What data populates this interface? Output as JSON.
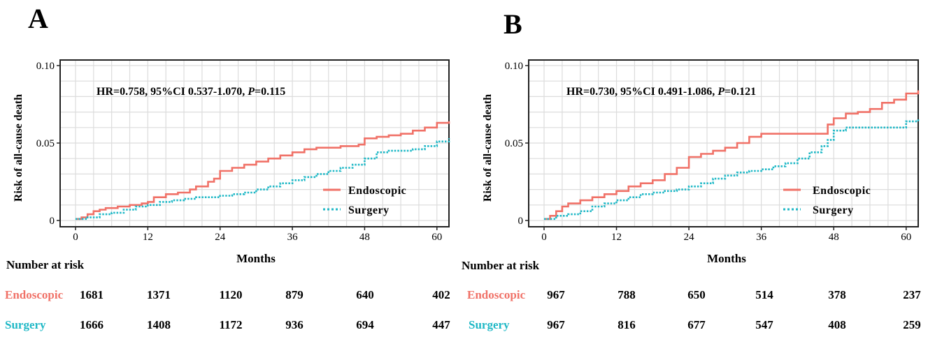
{
  "colors": {
    "endoscopic": "#f07167",
    "surgery": "#1fb8c6",
    "grid": "#dcdcdc",
    "axis": "#222222"
  },
  "chart_data": [
    {
      "type": "line",
      "panel": "A",
      "ylabel": "Risk of all-cause death",
      "xlabel": "Months",
      "xlim": [
        0,
        62
      ],
      "ylim": [
        0,
        0.1
      ],
      "xticks": [
        0,
        12,
        24,
        36,
        48,
        60
      ],
      "yticks": [
        {
          "v": 0,
          "t": "0"
        },
        {
          "v": 0.05,
          "t": "0.05"
        },
        {
          "v": 0.1,
          "t": "0.10"
        }
      ],
      "grid": true,
      "legend_position": "bottom-right",
      "annotation": {
        "pre": "HR=0.758, 95%CI 0.537-1.070, ",
        "p": "P",
        "post": "=0.115"
      },
      "series": [
        {
          "name": "Endoscopic",
          "style": "solid",
          "x": [
            0,
            1,
            2,
            3,
            4,
            5,
            6,
            7,
            9,
            11,
            12,
            13,
            15,
            17,
            19,
            20,
            22,
            23,
            24,
            26,
            28,
            30,
            32,
            34,
            36,
            38,
            40,
            42,
            44,
            46,
            47,
            48,
            50,
            52,
            54,
            56,
            58,
            60,
            62
          ],
          "y": [
            0.001,
            0.002,
            0.004,
            0.006,
            0.007,
            0.008,
            0.008,
            0.009,
            0.01,
            0.011,
            0.012,
            0.015,
            0.017,
            0.018,
            0.02,
            0.022,
            0.025,
            0.027,
            0.032,
            0.034,
            0.036,
            0.038,
            0.04,
            0.042,
            0.044,
            0.046,
            0.047,
            0.047,
            0.048,
            0.048,
            0.049,
            0.053,
            0.054,
            0.055,
            0.056,
            0.058,
            0.06,
            0.063,
            0.064
          ]
        },
        {
          "name": "Surgery",
          "style": "dotted",
          "x": [
            0,
            2,
            4,
            6,
            8,
            10,
            12,
            14,
            16,
            18,
            20,
            22,
            24,
            26,
            28,
            30,
            32,
            34,
            36,
            38,
            40,
            42,
            44,
            46,
            48,
            50,
            52,
            54,
            56,
            58,
            60,
            62
          ],
          "y": [
            0.001,
            0.002,
            0.004,
            0.005,
            0.007,
            0.009,
            0.01,
            0.012,
            0.013,
            0.014,
            0.015,
            0.015,
            0.016,
            0.017,
            0.018,
            0.02,
            0.022,
            0.024,
            0.026,
            0.028,
            0.03,
            0.032,
            0.034,
            0.036,
            0.04,
            0.044,
            0.045,
            0.045,
            0.046,
            0.048,
            0.051,
            0.053
          ]
        }
      ],
      "risk_table": {
        "title": "Number at risk",
        "rows": [
          {
            "label": "Endoscopic",
            "counts": [
              "1681",
              "1371",
              "1120",
              "879",
              "640",
              "402"
            ]
          },
          {
            "label": "Surgery",
            "counts": [
              "1666",
              "1408",
              "1172",
              "936",
              "694",
              "447"
            ]
          }
        ]
      }
    },
    {
      "type": "line",
      "panel": "B",
      "ylabel": "Risk of all-cause death",
      "xlabel": "Months",
      "xlim": [
        0,
        62
      ],
      "ylim": [
        0,
        0.1
      ],
      "xticks": [
        0,
        12,
        24,
        36,
        48,
        60
      ],
      "yticks": [
        {
          "v": 0,
          "t": "0"
        },
        {
          "v": 0.05,
          "t": "0.05"
        },
        {
          "v": 0.1,
          "t": "0.10"
        }
      ],
      "grid": true,
      "legend_position": "bottom-right",
      "annotation": {
        "pre": "HR=0.730, 95%CI 0.491-1.086, ",
        "p": "P",
        "post": "=0.121"
      },
      "series": [
        {
          "name": "Endoscopic",
          "style": "solid",
          "x": [
            0,
            1,
            2,
            3,
            4,
            6,
            8,
            10,
            12,
            14,
            16,
            18,
            20,
            22,
            24,
            26,
            28,
            30,
            32,
            34,
            36,
            38,
            40,
            42,
            44,
            46,
            47,
            48,
            50,
            52,
            54,
            56,
            58,
            60,
            62
          ],
          "y": [
            0.001,
            0.003,
            0.006,
            0.009,
            0.011,
            0.013,
            0.015,
            0.017,
            0.019,
            0.022,
            0.024,
            0.026,
            0.03,
            0.034,
            0.041,
            0.043,
            0.045,
            0.047,
            0.05,
            0.054,
            0.056,
            0.056,
            0.056,
            0.056,
            0.056,
            0.056,
            0.062,
            0.066,
            0.069,
            0.07,
            0.072,
            0.076,
            0.078,
            0.082,
            0.084
          ]
        },
        {
          "name": "Surgery",
          "style": "dotted",
          "x": [
            0,
            1,
            2,
            4,
            6,
            8,
            10,
            12,
            14,
            16,
            18,
            20,
            22,
            24,
            26,
            28,
            30,
            32,
            34,
            36,
            38,
            40,
            42,
            44,
            46,
            47,
            48,
            50,
            52,
            54,
            56,
            58,
            60,
            62
          ],
          "y": [
            0.001,
            0.001,
            0.003,
            0.004,
            0.006,
            0.009,
            0.011,
            0.013,
            0.015,
            0.017,
            0.018,
            0.019,
            0.02,
            0.022,
            0.024,
            0.027,
            0.029,
            0.031,
            0.032,
            0.033,
            0.035,
            0.037,
            0.04,
            0.044,
            0.048,
            0.052,
            0.058,
            0.06,
            0.06,
            0.06,
            0.06,
            0.06,
            0.064,
            0.066
          ]
        }
      ],
      "risk_table": {
        "title": "Number at risk",
        "rows": [
          {
            "label": "Endoscopic",
            "counts": [
              "967",
              "788",
              "650",
              "514",
              "378",
              "237"
            ]
          },
          {
            "label": "Surgery",
            "counts": [
              "967",
              "816",
              "677",
              "547",
              "408",
              "259"
            ]
          }
        ]
      }
    }
  ]
}
